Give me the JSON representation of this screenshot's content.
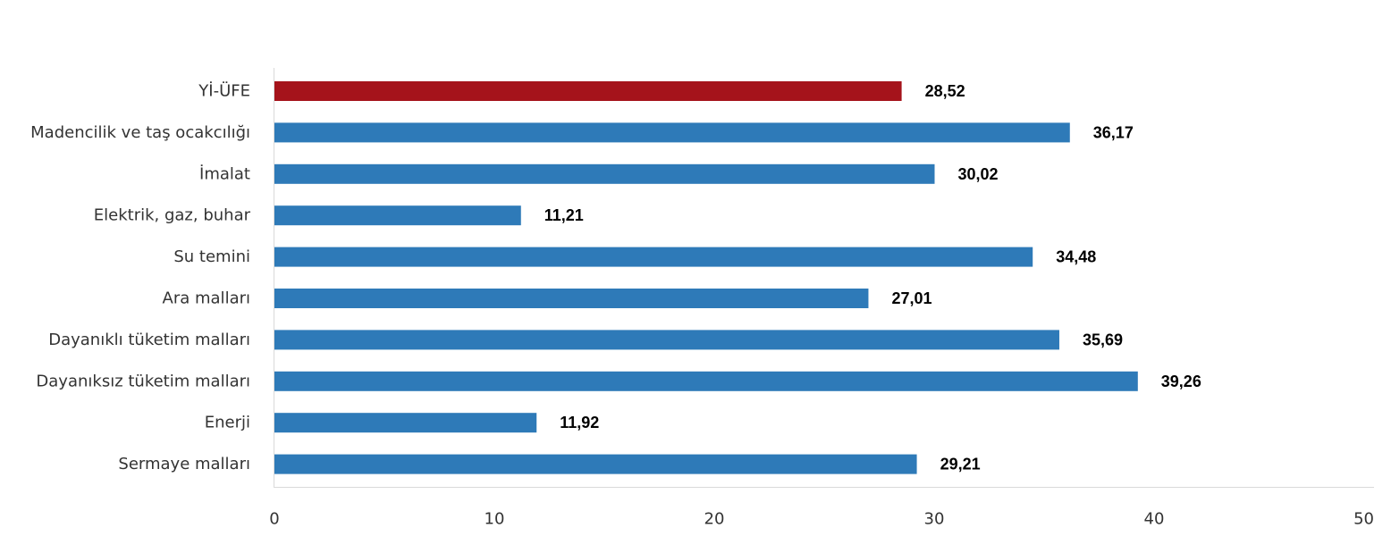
{
  "chart_data": {
    "type": "bar",
    "orientation": "horizontal",
    "categories": [
      "Yİ-ÜFE",
      "Madencilik ve taş ocakcılığı",
      "İmalat",
      "Elektrik, gaz, buhar",
      "Su temini",
      "Ara malları",
      "Dayanıklı tüketim malları",
      "Dayanıksız tüketim malları",
      "Enerji",
      "Sermaye malları"
    ],
    "values": [
      28.52,
      36.17,
      30.02,
      11.21,
      34.48,
      27.01,
      35.69,
      39.26,
      11.92,
      29.21
    ],
    "value_labels": [
      "28,52",
      "36,17",
      "30,02",
      "11,21",
      "34,48",
      "27,01",
      "35,69",
      "39,26",
      "11,92",
      "29,21"
    ],
    "bar_colors": [
      "#a5131b",
      "#2e7ab8",
      "#2e7ab8",
      "#2e7ab8",
      "#2e7ab8",
      "#2e7ab8",
      "#2e7ab8",
      "#2e7ab8",
      "#2e7ab8",
      "#2e7ab8"
    ],
    "xlim": [
      0,
      50
    ],
    "x_ticks": [
      "0",
      "10",
      "20",
      "30",
      "40",
      "50"
    ],
    "title": "",
    "xlabel": "",
    "ylabel": "",
    "grid": false,
    "legend": false
  }
}
